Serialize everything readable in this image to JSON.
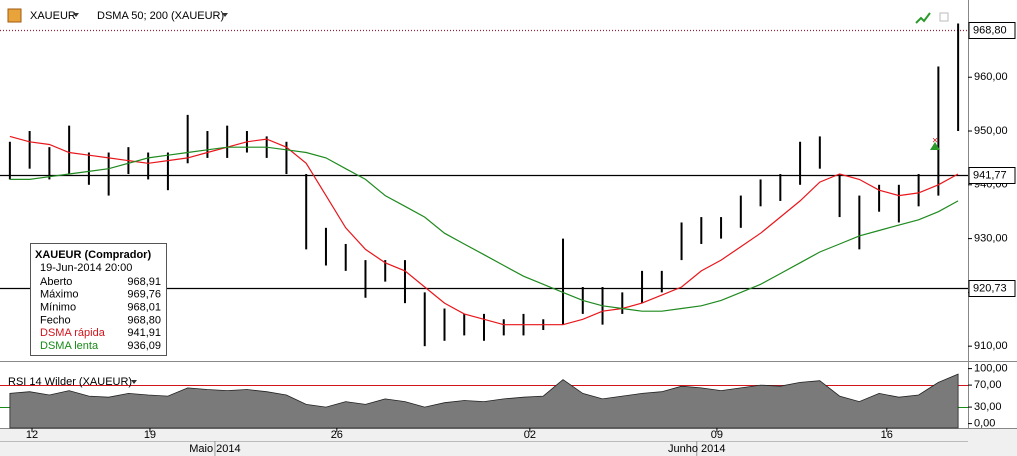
{
  "toolbar": {
    "symbol": "XAUEUR",
    "indicator": "DSMA 50; 200 (XAUEUR)"
  },
  "info_box": {
    "title": "XAUEUR (Comprador)",
    "date": "19-Jun-2014 20:00",
    "rows": [
      {
        "label": "Aberto",
        "value": "968,91"
      },
      {
        "label": "Máximo",
        "value": "969,76"
      },
      {
        "label": "Mínimo",
        "value": "968,01"
      },
      {
        "label": "Fecho",
        "value": "968,80"
      },
      {
        "label": "DSMA rápida",
        "value": "941,91",
        "color": "#d2141c"
      },
      {
        "label": "DSMA lenta",
        "value": "936,09",
        "color": "#178a17"
      }
    ]
  },
  "chart_data": [
    {
      "type": "ohlc",
      "xlim": [
        -0.5,
        48.5
      ],
      "ylim": [
        907.8,
        972.5
      ],
      "yticks": [
        {
          "value": 910,
          "label": "910,00"
        },
        {
          "value": 920,
          "label": "920,00"
        },
        {
          "value": 930,
          "label": "930,00"
        },
        {
          "value": 940,
          "label": "940,00"
        },
        {
          "value": 950,
          "label": "950,00"
        },
        {
          "value": 960,
          "label": "960,00"
        }
      ],
      "hlines": [
        {
          "value": 968.8,
          "label": "968,80",
          "color": "#a0203a",
          "dashed": true
        },
        {
          "value": 941.77,
          "label": "941,77",
          "color": "#000000"
        },
        {
          "value": 920.73,
          "label": "920,73",
          "color": "#000000"
        }
      ],
      "series": [
        {
          "color": "#000000",
          "high": [
            948,
            950,
            947,
            951,
            946,
            946,
            947,
            946,
            946,
            953,
            950,
            951,
            950,
            949,
            948,
            942,
            932,
            929,
            926,
            926,
            926,
            920,
            917,
            916,
            916,
            915,
            916,
            915,
            930,
            921,
            921,
            920,
            924,
            924,
            933,
            934,
            934,
            938,
            941,
            942,
            948,
            949,
            942,
            938,
            940,
            940,
            942,
            962,
            970
          ],
          "low": [
            941,
            943,
            941,
            942,
            940,
            938,
            942,
            941,
            939,
            944,
            945,
            945,
            946,
            945,
            942,
            928,
            925,
            924,
            919,
            922,
            918,
            910,
            911,
            912,
            911,
            912,
            912,
            913,
            914,
            916,
            914,
            916,
            918,
            920,
            926,
            929,
            930,
            932,
            936,
            937,
            940,
            943,
            934,
            928,
            935,
            933,
            936,
            938,
            950
          ]
        },
        {
          "color": "#e8161b",
          "values": [
            949,
            948,
            947.5,
            946,
            945.5,
            945,
            944.5,
            944,
            944.5,
            945,
            946,
            947,
            948,
            948.5,
            947,
            944,
            938,
            932,
            928,
            925.5,
            924,
            921,
            918,
            916,
            915,
            914,
            914,
            914,
            914,
            915,
            916.5,
            917,
            918,
            919.5,
            921,
            924,
            926,
            928.5,
            931,
            934,
            937,
            940.5,
            942,
            941,
            939,
            938,
            938.5,
            940,
            942
          ]
        },
        {
          "color": "#1f8a1f",
          "values": [
            941,
            941,
            941.5,
            942,
            942.5,
            943,
            944,
            945,
            945.5,
            946,
            946.5,
            947,
            947,
            947,
            946.5,
            946,
            945,
            943,
            941,
            938,
            936,
            934,
            931,
            929,
            927,
            925,
            923,
            921.5,
            920,
            918.5,
            917.5,
            917,
            916.5,
            916.5,
            917,
            917.5,
            918.5,
            920,
            921.5,
            923.5,
            925.5,
            927.5,
            929,
            930.5,
            931.5,
            932.5,
            933.5,
            935,
            937
          ]
        }
      ]
    },
    {
      "type": "area",
      "title": "RSI 14 Wilder (XAUEUR)",
      "xlim": [
        -0.5,
        48.5
      ],
      "ylim": [
        -8,
        112
      ],
      "yticks": [
        {
          "value": 0,
          "label": "0,00"
        },
        {
          "value": 30,
          "label": "30,00"
        },
        {
          "value": 70,
          "label": "70,00"
        },
        {
          "value": 100,
          "label": "100,00"
        }
      ],
      "hlines": [
        {
          "value": 70,
          "color": "#d2141c"
        },
        {
          "value": 30,
          "color": "#178a17"
        }
      ],
      "color": "#7a7a7a",
      "values": [
        55,
        58,
        52,
        60,
        50,
        48,
        55,
        52,
        50,
        65,
        62,
        60,
        62,
        58,
        52,
        35,
        30,
        40,
        35,
        45,
        40,
        30,
        38,
        42,
        40,
        45,
        48,
        50,
        80,
        55,
        45,
        50,
        55,
        58,
        68,
        65,
        60,
        65,
        70,
        68,
        75,
        78,
        50,
        40,
        55,
        48,
        52,
        75,
        90
      ],
      "xticks": [
        {
          "value": 1.12,
          "label": "12"
        },
        {
          "value": 7.09,
          "label": "19"
        },
        {
          "value": 16.55,
          "label": "26"
        },
        {
          "value": 26.32,
          "label": "02"
        },
        {
          "value": 35.79,
          "label": "09"
        },
        {
          "value": 44.39,
          "label": "16"
        }
      ],
      "month_ticks": [
        {
          "value": 10.38,
          "label": "Maio 2014"
        },
        {
          "value": 34.77,
          "label": "Junho 2014"
        }
      ]
    }
  ]
}
